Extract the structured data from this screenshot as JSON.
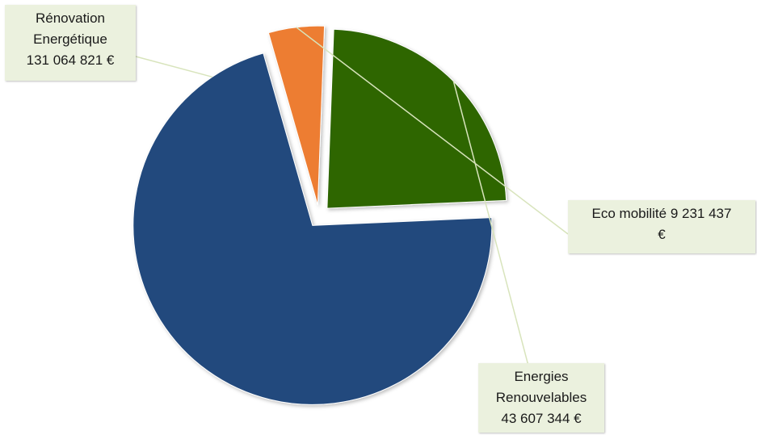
{
  "chart_data": {
    "type": "pie",
    "title": "",
    "exploded": true,
    "slices": [
      {
        "label": "Rénovation Energétique",
        "value": 131064821,
        "value_label": "131 064 821 €",
        "color": "#234a7d"
      },
      {
        "label": "Eco mobilité",
        "value": 9231437,
        "value_label": "9 231 437 €",
        "color": "#ed7d31"
      },
      {
        "label": "Energies Renouvelables",
        "value": 43607344,
        "value_label": "43 607 344 €",
        "color": "#2e6606"
      }
    ],
    "label_box_color": "#ebf1de",
    "labels": {
      "renovation_line1": "Rénovation",
      "renovation_line2": "Energétique",
      "renovation_line3": "131 064 821 €",
      "eco_line1": "Eco mobilité 9 231 437",
      "eco_line2": "€",
      "energies_line1": "Energies",
      "energies_line2": "Renouvelables",
      "energies_line3": "43 607 344 €"
    }
  }
}
